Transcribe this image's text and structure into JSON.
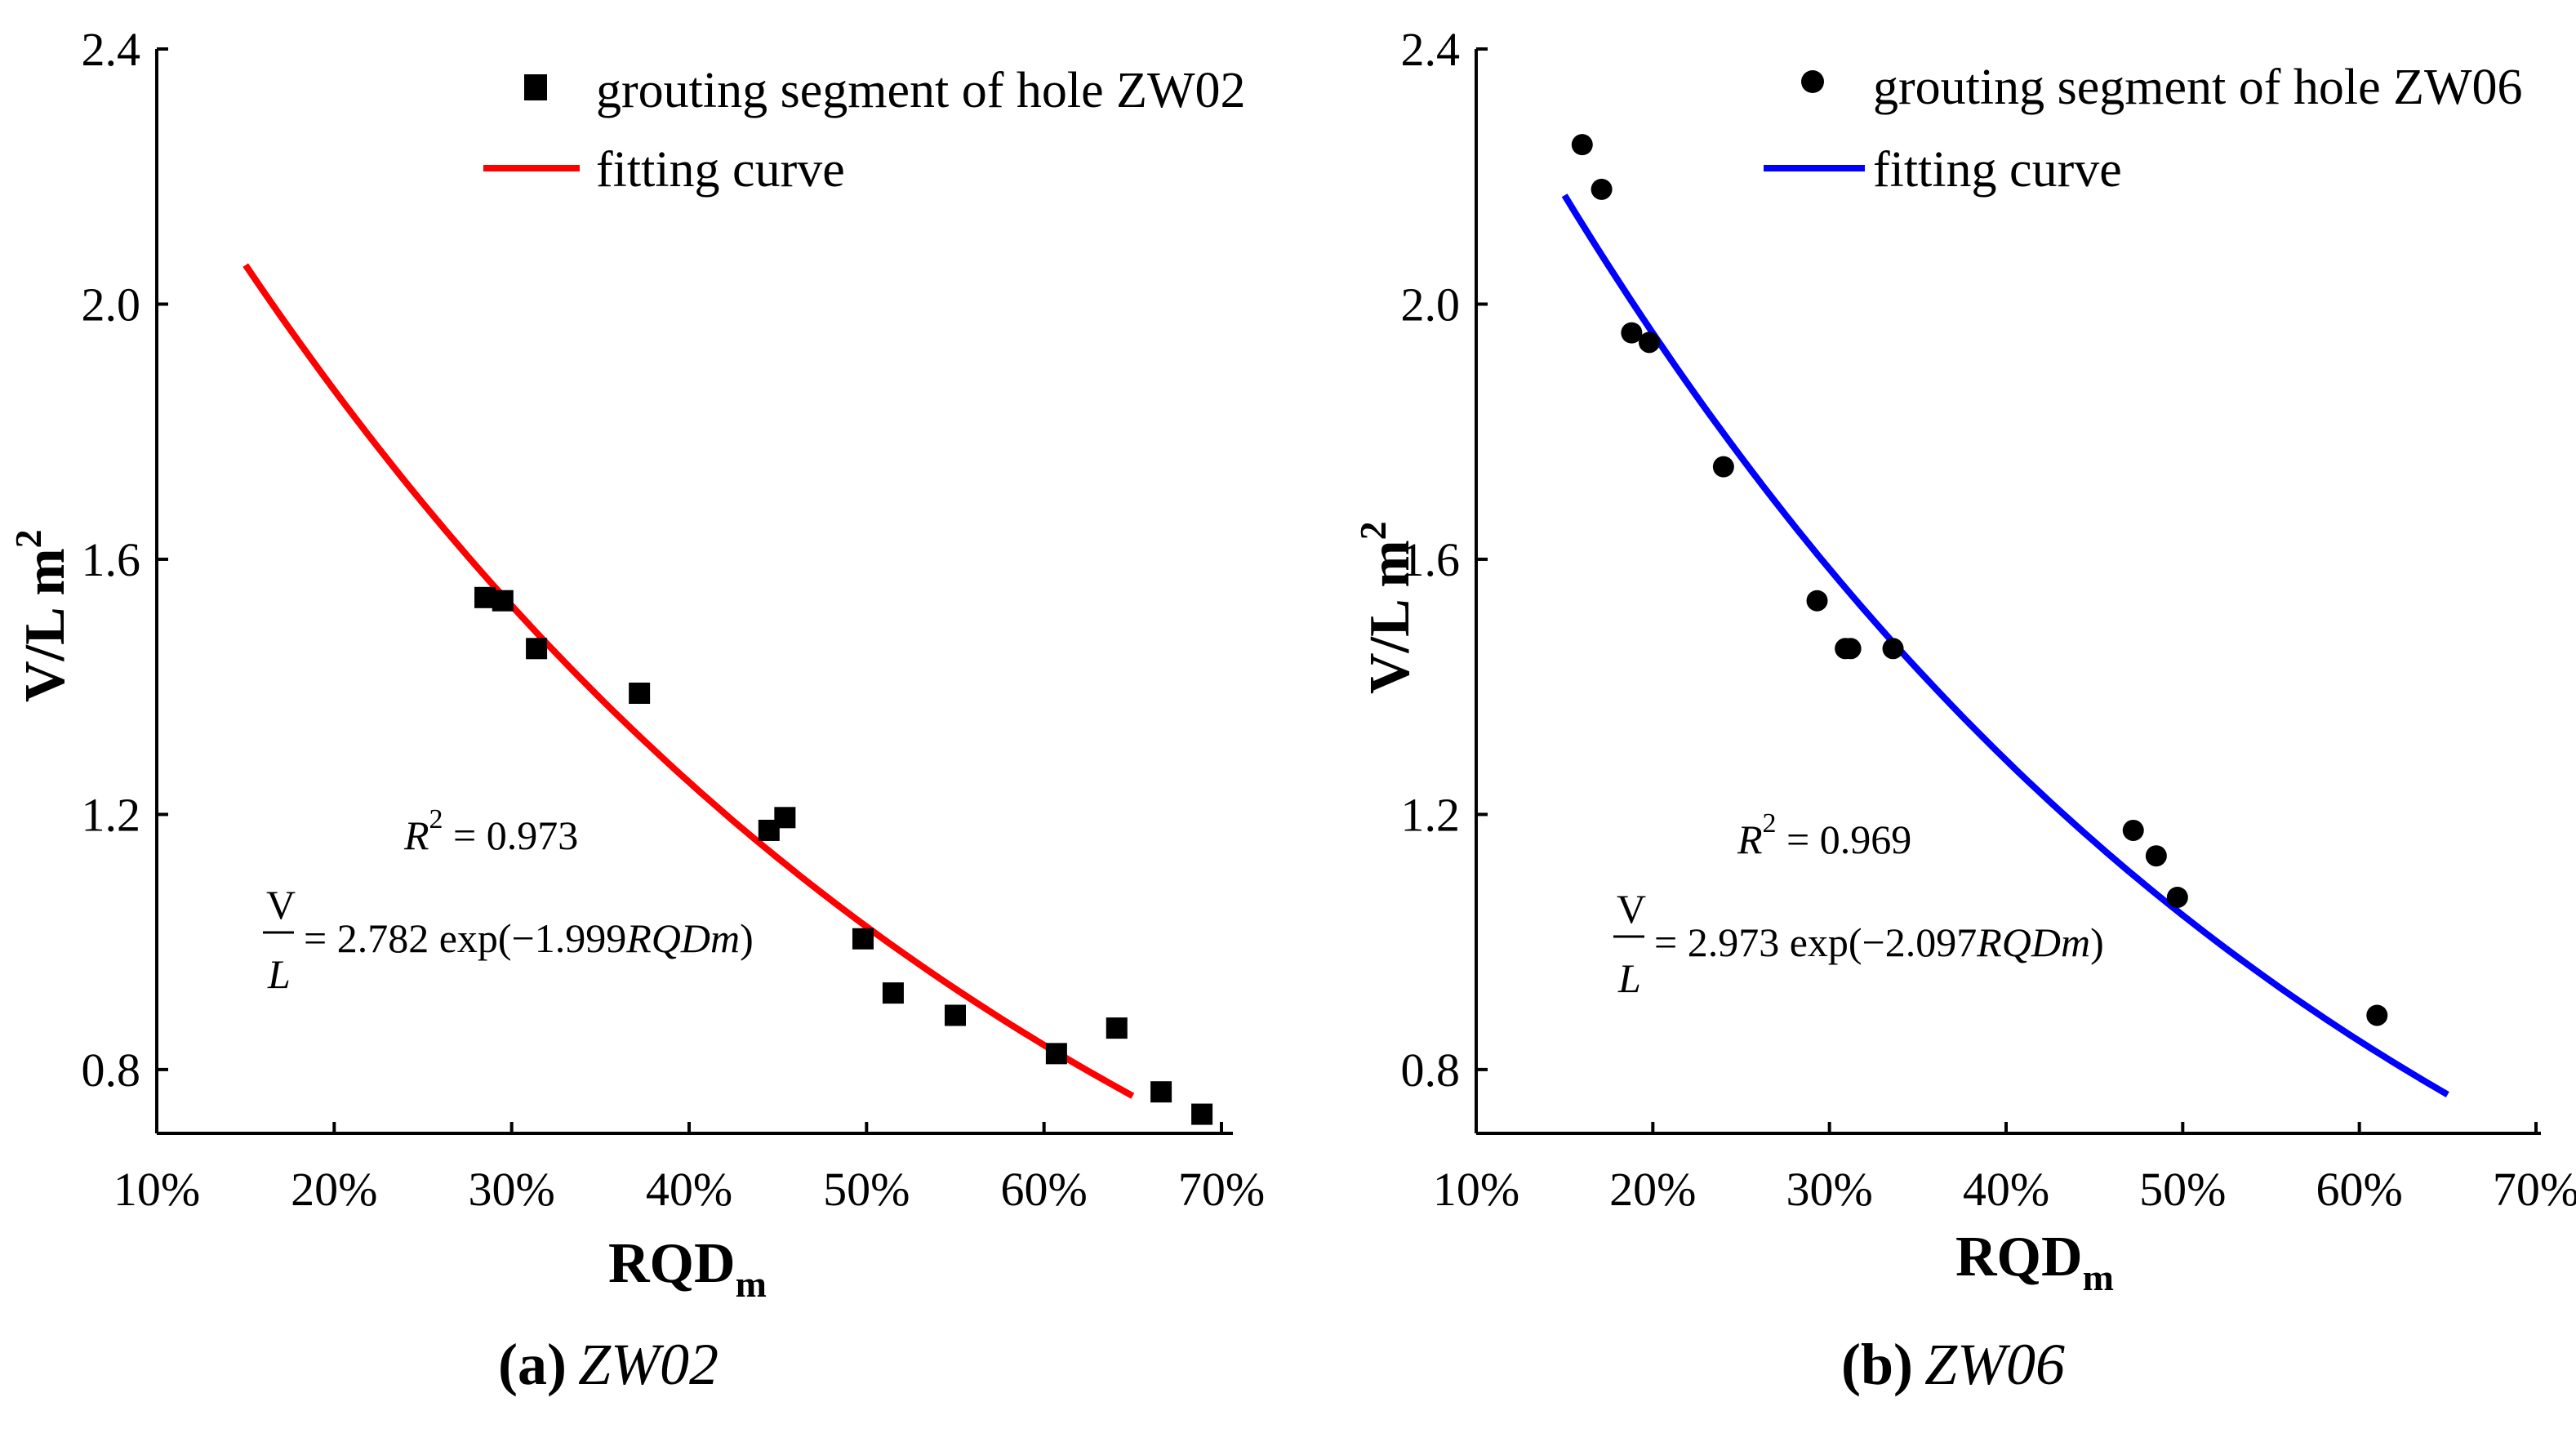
{
  "chart_data": [
    {
      "type": "scatter",
      "panel_label": "(a)",
      "panel_title": "ZW02",
      "xlabel": "RQD",
      "xlabel_sub": "m",
      "ylabel": "V/L  m",
      "ylabel_sup": "2",
      "xlim": [
        0.1,
        0.7
      ],
      "ylim": [
        0.7,
        2.4
      ],
      "xticks": [
        "10%",
        "20%",
        "30%",
        "40%",
        "50%",
        "60%",
        "70%"
      ],
      "yticks": [
        "0.8",
        "1.2",
        "1.6",
        "2.0",
        "2.4"
      ],
      "legend": {
        "points_label": "grouting segment of hole ZW02",
        "curve_label": "fitting curve",
        "marker": "square",
        "curve_color": "#ff0000"
      },
      "annotation": {
        "r2_label": "R",
        "r2_sup": "2",
        "r2_value": " = 0.973",
        "eq_num": "V",
        "eq_den": "L",
        "eq_rhs": "= 2.782 exp(−1.999",
        "eq_var": "RQDm",
        "eq_close": ")"
      },
      "fit": {
        "a": 2.782,
        "b": -1.999,
        "x_from": 0.15,
        "x_to": 0.65
      },
      "points": [
        {
          "x": 0.285,
          "y": 1.54
        },
        {
          "x": 0.295,
          "y": 1.535
        },
        {
          "x": 0.314,
          "y": 1.46
        },
        {
          "x": 0.372,
          "y": 1.39
        },
        {
          "x": 0.445,
          "y": 1.175
        },
        {
          "x": 0.454,
          "y": 1.195
        },
        {
          "x": 0.498,
          "y": 1.005
        },
        {
          "x": 0.515,
          "y": 0.92
        },
        {
          "x": 0.55,
          "y": 0.885
        },
        {
          "x": 0.607,
          "y": 0.825
        },
        {
          "x": 0.641,
          "y": 0.865
        },
        {
          "x": 0.666,
          "y": 0.765
        },
        {
          "x": 0.689,
          "y": 0.73
        }
      ]
    },
    {
      "type": "scatter",
      "panel_label": "(b)",
      "panel_title": "ZW06",
      "xlabel": "RQD",
      "xlabel_sub": "m",
      "ylabel": "V/L  m",
      "ylabel_sup": "2",
      "xlim": [
        0.1,
        0.7
      ],
      "ylim": [
        0.7,
        2.4
      ],
      "xticks": [
        "10%",
        "20%",
        "30%",
        "40%",
        "50%",
        "60%",
        "70%"
      ],
      "yticks": [
        "0.8",
        "1.2",
        "1.6",
        "2.0",
        "2.4"
      ],
      "legend": {
        "points_label": "grouting segment of hole ZW06",
        "curve_label": "fitting curve",
        "marker": "circle",
        "curve_color": "#0000ff"
      },
      "annotation": {
        "r2_label": "R",
        "r2_sup": "2",
        "r2_value": " = 0.969",
        "eq_num": "V",
        "eq_den": "L",
        "eq_rhs": "= 2.973 exp(−2.097",
        "eq_var": "RQDm",
        "eq_close": ")"
      },
      "fit": {
        "a": 2.973,
        "b": -2.097,
        "x_from": 0.15,
        "x_to": 0.65
      },
      "points": [
        {
          "x": 0.16,
          "y": 2.25
        },
        {
          "x": 0.171,
          "y": 2.18
        },
        {
          "x": 0.188,
          "y": 1.955
        },
        {
          "x": 0.198,
          "y": 1.94
        },
        {
          "x": 0.24,
          "y": 1.745
        },
        {
          "x": 0.293,
          "y": 1.535
        },
        {
          "x": 0.309,
          "y": 1.46
        },
        {
          "x": 0.312,
          "y": 1.46
        },
        {
          "x": 0.336,
          "y": 1.46
        },
        {
          "x": 0.472,
          "y": 1.175
        },
        {
          "x": 0.485,
          "y": 1.135
        },
        {
          "x": 0.497,
          "y": 1.07
        },
        {
          "x": 0.61,
          "y": 0.885
        }
      ]
    }
  ]
}
